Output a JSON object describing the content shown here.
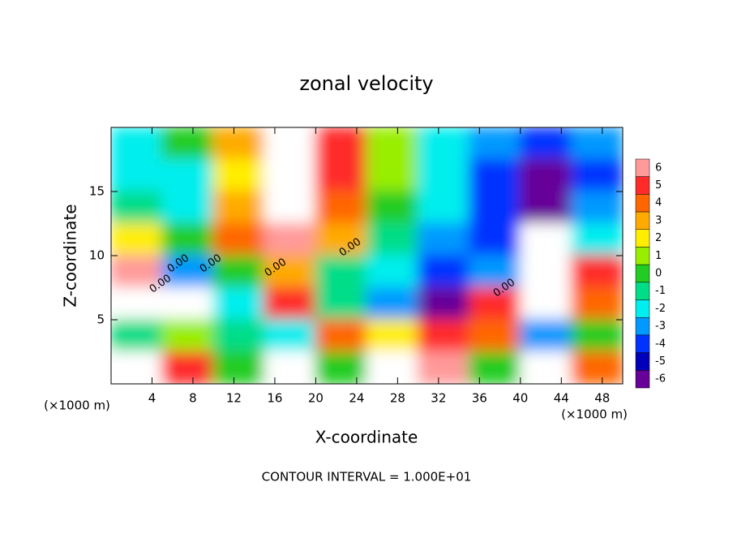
{
  "chart_data": {
    "type": "heatmap",
    "title": "zonal velocity",
    "x_label": "X-coordinate",
    "y_label": "Z-coordinate",
    "x_unit": "(×1000 m)",
    "y_unit": "(×1000 m)",
    "xlim": [
      0,
      50
    ],
    "ylim": [
      0,
      20
    ],
    "xticks": [
      4,
      8,
      12,
      16,
      20,
      24,
      28,
      32,
      36,
      40,
      44,
      48
    ],
    "yticks": [
      5,
      10,
      15
    ],
    "z": [
      [
        -2,
        0,
        3,
        7,
        5,
        1,
        -2,
        -3,
        -4,
        -3
      ],
      [
        -2,
        -2,
        2,
        7,
        5,
        1,
        -2,
        -4,
        -6,
        -4
      ],
      [
        -1,
        -2,
        3,
        7,
        4,
        0,
        -2,
        -4,
        -6,
        -3
      ],
      [
        2,
        0,
        4,
        6,
        3,
        -1,
        -3,
        -4,
        7,
        -2
      ],
      [
        6,
        -3,
        0,
        3,
        -1,
        -2,
        -4,
        -3,
        7,
        5
      ],
      [
        7,
        8,
        -2,
        5,
        -1,
        -3,
        -6,
        5,
        7,
        4
      ],
      [
        -1,
        1,
        -1,
        -2,
        4,
        2,
        5,
        4,
        -3,
        0
      ],
      [
        7,
        5,
        0,
        8,
        0,
        7,
        6,
        0,
        8,
        4
      ]
    ],
    "colorbar": {
      "ticks": [
        6,
        5,
        4,
        3,
        2,
        1,
        0,
        -1,
        -2,
        -3,
        -4,
        -5,
        -6
      ],
      "colors": [
        "#ff9a9a",
        "#ff2a2a",
        "#ff6600",
        "#ffaa00",
        "#ffee00",
        "#99ee00",
        "#22cc22",
        "#00dd88",
        "#00eeee",
        "#0099ff",
        "#0033ff",
        "#0000bb",
        "#660099"
      ]
    },
    "contour_label": "0.00",
    "footer": "CONTOUR INTERVAL = 1.000E+01"
  }
}
